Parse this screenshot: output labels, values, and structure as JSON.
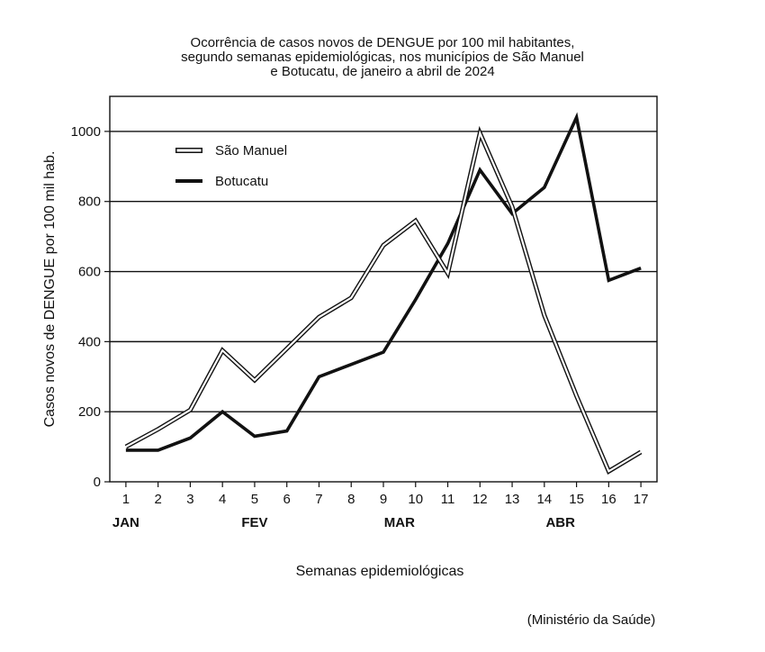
{
  "chart_data": {
    "type": "line",
    "title": [
      "Ocorrência de casos novos de DENGUE por 100 mil habitantes,",
      "segundo semanas epidemiológicas, nos municípios de São Manuel",
      "e Botucatu, de janeiro a abril de 2024"
    ],
    "xlabel": "Semanas epidemiológicas",
    "ylabel": "Casos novos de DENGUE por 100 mil hab.",
    "x": [
      1,
      2,
      3,
      4,
      5,
      6,
      7,
      8,
      9,
      10,
      11,
      12,
      13,
      14,
      15,
      16,
      17
    ],
    "month_labels": [
      {
        "label": "JAN",
        "week": 1
      },
      {
        "label": "FEV",
        "week": 5
      },
      {
        "label": "MAR",
        "week": 9.5
      },
      {
        "label": "ABR",
        "week": 14.5
      }
    ],
    "yticks": [
      0,
      200,
      400,
      600,
      800,
      1000
    ],
    "ylim": [
      0,
      1100
    ],
    "xlim": [
      0.5,
      17.5
    ],
    "grid": "horizontal",
    "legend_position": "top-left",
    "series": [
      {
        "name": "São Manuel",
        "style": "double-outline",
        "values": [
          100,
          150,
          205,
          375,
          290,
          380,
          470,
          525,
          675,
          745,
          595,
          995,
          785,
          475,
          245,
          30,
          85
        ]
      },
      {
        "name": "Botucatu",
        "style": "solid-thick",
        "values": [
          90,
          90,
          125,
          200,
          130,
          145,
          300,
          335,
          370,
          520,
          680,
          890,
          765,
          840,
          1040,
          575,
          610
        ]
      }
    ],
    "source": "(Ministério da Saúde)"
  }
}
